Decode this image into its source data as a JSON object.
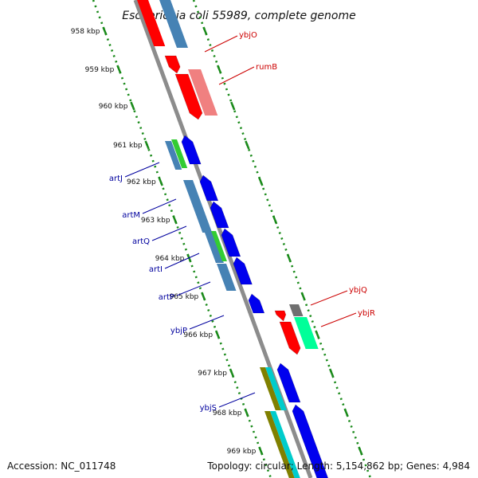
{
  "title": "Escherichia coli 55989, complete genome",
  "footer": {
    "accession": "Accession: NC_011748",
    "summary": "Topology: circular; Length: 5,154,862 bp; Genes: 4,984"
  },
  "colors": {
    "backbone": "#8c8c8c",
    "tick_dots": "#1a8a1a",
    "reverse_label": "#cc0000",
    "forward_label": "#00009e",
    "red": "#ff0000",
    "pink": "#f08080",
    "blue": "#0000ee",
    "steel": "#4682b4",
    "green": "#33cc33",
    "teal": "#00cccc",
    "olive": "#808000",
    "aquamarine": "#00ff99",
    "gray": "#707070"
  },
  "ticks": [
    "958 kbp",
    "959 kbp",
    "960 kbp",
    "961 kbp",
    "962 kbp",
    "963 kbp",
    "964 kbp",
    "965 kbp",
    "966 kbp",
    "967 kbp",
    "968 kbp",
    "969 kbp"
  ],
  "gene_labels": [
    {
      "name": "ybjO",
      "strand": "reverse"
    },
    {
      "name": "rumB",
      "strand": "reverse"
    },
    {
      "name": "artJ",
      "strand": "forward"
    },
    {
      "name": "artM",
      "strand": "forward"
    },
    {
      "name": "artQ",
      "strand": "forward"
    },
    {
      "name": "artI",
      "strand": "forward"
    },
    {
      "name": "artP",
      "strand": "forward"
    },
    {
      "name": "ybjP",
      "strand": "forward"
    },
    {
      "name": "ybjQ",
      "strand": "reverse"
    },
    {
      "name": "ybjR",
      "strand": "reverse"
    },
    {
      "name": "ybjS",
      "strand": "forward"
    }
  ]
}
